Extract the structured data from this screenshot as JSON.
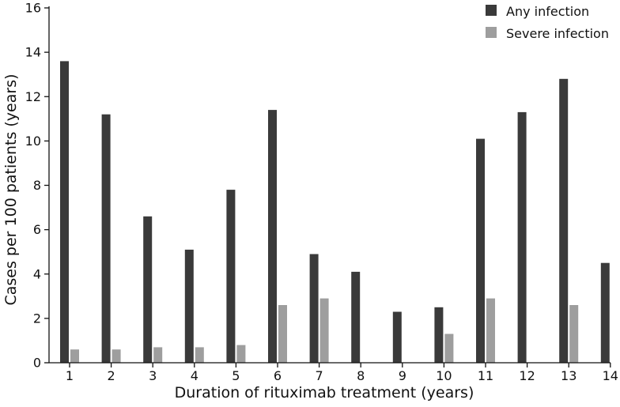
{
  "chart_data": {
    "type": "bar",
    "title": "",
    "xlabel": "Duration of rituximab treatment (years)",
    "ylabel": "Cases per 100 patients (years)",
    "ylim": [
      0,
      16
    ],
    "yticks": [
      0,
      2,
      4,
      6,
      8,
      10,
      12,
      14,
      16
    ],
    "categories": [
      "1",
      "2",
      "3",
      "4",
      "5",
      "6",
      "7",
      "8",
      "9",
      "10",
      "11",
      "12",
      "13",
      "14"
    ],
    "series": [
      {
        "name": "Any infection",
        "color": "#3a3a3a",
        "values": [
          13.6,
          11.2,
          6.6,
          5.1,
          7.8,
          11.4,
          4.9,
          4.1,
          2.3,
          2.5,
          10.1,
          11.3,
          12.8,
          4.5
        ]
      },
      {
        "name": "Severe infection",
        "color": "#9e9e9e",
        "values": [
          0.6,
          0.6,
          0.7,
          0.7,
          0.8,
          2.6,
          2.9,
          null,
          null,
          1.3,
          2.9,
          null,
          2.6,
          null
        ]
      }
    ],
    "legend_position": "top-right",
    "grid": false
  }
}
